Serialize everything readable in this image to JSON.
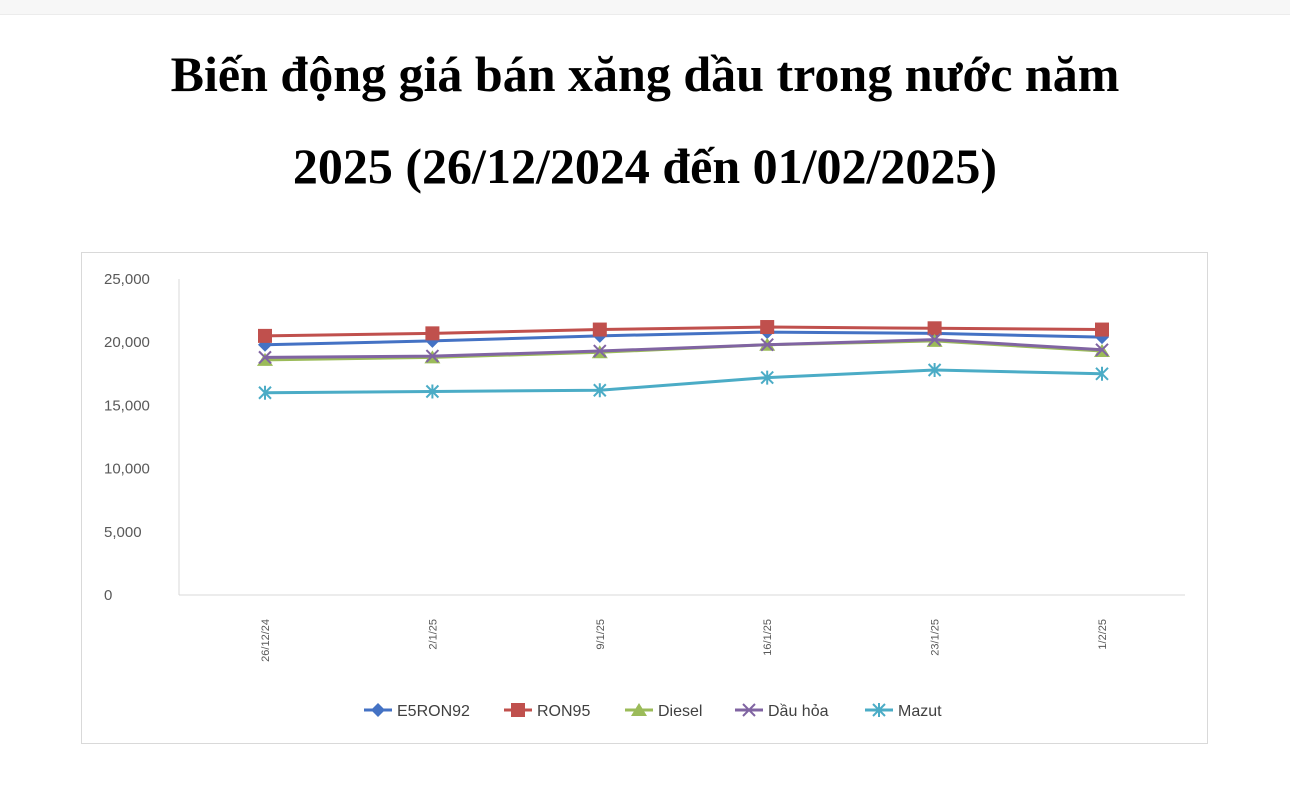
{
  "title": {
    "line1": "Biến động giá bán xăng dầu trong nước năm",
    "line2": "2025 (26/12/2024 đến 01/02/2025)"
  },
  "chart_data": {
    "type": "line",
    "title": "Biến động giá bán xăng dầu trong nước năm 2025 (26/12/2024 đến 01/02/2025)",
    "xlabel": "",
    "ylabel": "",
    "x": [
      "26/12/24",
      "2/1/25",
      "9/1/25",
      "16/1/25",
      "23/1/25",
      "1/2/25"
    ],
    "y_ticks": [
      "0",
      "5,000",
      "10,000",
      "15,000",
      "20,000",
      "25,000"
    ],
    "ylim": [
      0,
      25000
    ],
    "grid": false,
    "legend_position": "bottom",
    "series": [
      {
        "name": "E5RON92",
        "color": "#4472c4",
        "marker": "diamond",
        "values": [
          19800,
          20100,
          20500,
          20800,
          20700,
          20400
        ]
      },
      {
        "name": "RON95",
        "color": "#c0504d",
        "marker": "square",
        "values": [
          20500,
          20700,
          21000,
          21200,
          21100,
          21000
        ]
      },
      {
        "name": "Diesel",
        "color": "#9bbb59",
        "marker": "triangle",
        "values": [
          18600,
          18800,
          19200,
          19800,
          20100,
          19300
        ]
      },
      {
        "name": "Dầu hỏa",
        "color": "#8064a2",
        "marker": "x",
        "values": [
          18800,
          18900,
          19300,
          19800,
          20200,
          19400
        ]
      },
      {
        "name": "Mazut",
        "color": "#4bacc6",
        "marker": "star",
        "values": [
          16000,
          16100,
          16200,
          17200,
          17800,
          17500
        ]
      }
    ]
  }
}
